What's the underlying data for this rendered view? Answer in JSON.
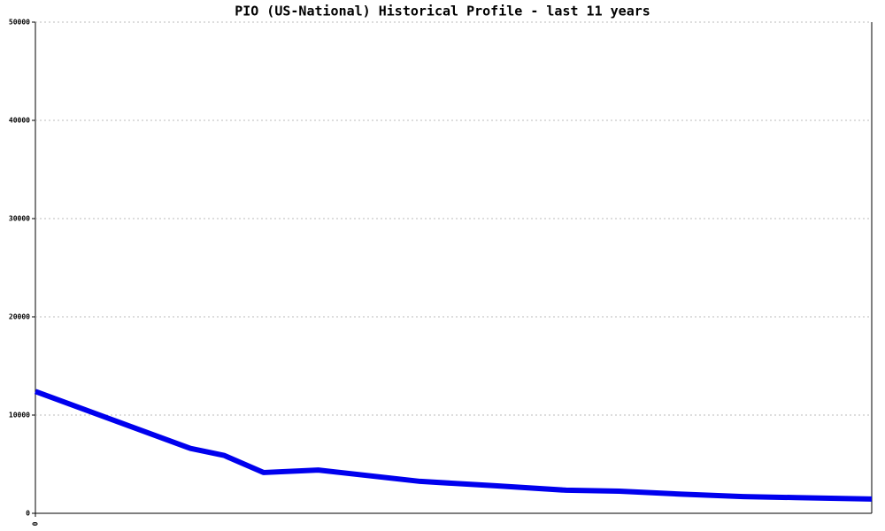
{
  "chart_data": {
    "type": "line",
    "title": "PIO (US-National) Historical Profile - last 11 years",
    "x": [
      0,
      2.04,
      2.48,
      3.0,
      3.72,
      5.06,
      6.05,
      6.98,
      7.68,
      8.5,
      9.31,
      10.0,
      11
    ],
    "series": [
      {
        "color": "#0000ee",
        "values": [
          12400,
          6600,
          5900,
          4150,
          4400,
          3250,
          2800,
          2350,
          2250,
          1950,
          1700,
          1600,
          1450
        ]
      }
    ],
    "xlim": [
      0,
      11
    ],
    "xticks": [
      0
    ],
    "ylim": [
      0,
      50000
    ],
    "yticks": [
      0,
      10000,
      20000,
      30000,
      40000,
      50000
    ],
    "grid": true
  }
}
